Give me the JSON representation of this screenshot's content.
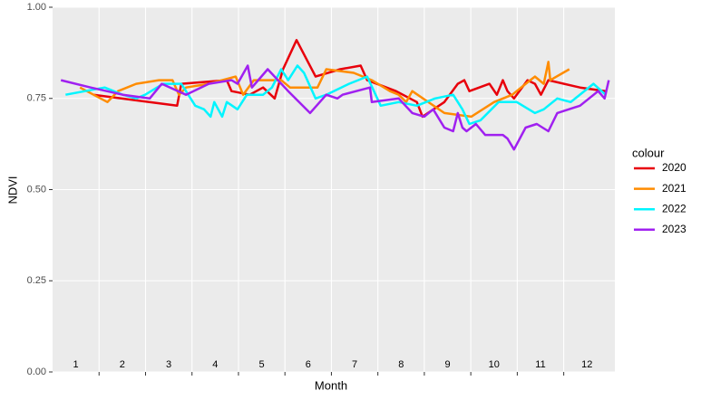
{
  "chart_data": {
    "type": "line",
    "x_label": "Month",
    "y_label": "NDVI",
    "legend_title": "colour",
    "legend": "right",
    "grid": true,
    "xlim": [
      0.5,
      12.6
    ],
    "ylim": [
      0,
      1
    ],
    "xticks": [
      1.5,
      2.5,
      3.5,
      4.5,
      5.5,
      6.5,
      7.5,
      8.5,
      9.5,
      10.5,
      11.5
    ],
    "yticks": [
      {
        "value": 0,
        "label": "0.00"
      },
      {
        "value": 0.25,
        "label": "0.25"
      },
      {
        "value": 0.5,
        "label": "0.50"
      },
      {
        "value": 0.75,
        "label": "0.75"
      },
      {
        "value": 1,
        "label": "1.00"
      }
    ],
    "annotations": [
      {
        "x": 1,
        "y": 0.02,
        "text": "1"
      },
      {
        "x": 2,
        "y": 0.02,
        "text": "2"
      },
      {
        "x": 3,
        "y": 0.02,
        "text": "3"
      },
      {
        "x": 4,
        "y": 0.02,
        "text": "4"
      },
      {
        "x": 5,
        "y": 0.02,
        "text": "5"
      },
      {
        "x": 6,
        "y": 0.02,
        "text": "6"
      },
      {
        "x": 7,
        "y": 0.02,
        "text": "7"
      },
      {
        "x": 8,
        "y": 0.02,
        "text": "8"
      },
      {
        "x": 9,
        "y": 0.02,
        "text": "9"
      },
      {
        "x": 10,
        "y": 0.02,
        "text": "10"
      },
      {
        "x": 11,
        "y": 0.02,
        "text": "11"
      },
      {
        "x": 12,
        "y": 0.02,
        "text": "12"
      }
    ],
    "series": [
      {
        "name": "2020",
        "color": "#e8000b",
        "x": [
          1.38,
          3.18,
          3.27,
          4.25,
          4.35,
          4.74,
          5.03,
          5.28,
          5.46,
          5.75,
          6.16,
          6.69,
          7.13,
          7.27,
          7.89,
          8.34,
          8.46,
          8.93,
          9.22,
          9.36,
          9.47,
          9.9,
          10.06,
          10.19,
          10.29,
          10.43,
          10.72,
          10.88,
          11.01,
          11.17,
          11.85,
          12.4
        ],
        "values": [
          0.76,
          0.73,
          0.79,
          0.8,
          0.77,
          0.76,
          0.78,
          0.75,
          0.83,
          0.91,
          0.81,
          0.83,
          0.84,
          0.8,
          0.77,
          0.74,
          0.7,
          0.74,
          0.79,
          0.8,
          0.77,
          0.79,
          0.76,
          0.8,
          0.77,
          0.75,
          0.8,
          0.79,
          0.76,
          0.8,
          0.78,
          0.77
        ]
      },
      {
        "name": "2021",
        "color": "#ff8c00",
        "x": [
          1.09,
          1.68,
          1.91,
          2.3,
          2.79,
          3.08,
          3.22,
          3.37,
          3.86,
          4.44,
          4.6,
          4.83,
          5.42,
          5.61,
          6.2,
          6.39,
          6.98,
          7.37,
          7.76,
          7.95,
          8.11,
          8.24,
          8.93,
          9.51,
          10.0,
          10.39,
          10.78,
          10.88,
          11.07,
          11.17,
          11.21,
          11.62
        ],
        "values": [
          0.78,
          0.74,
          0.77,
          0.79,
          0.8,
          0.8,
          0.76,
          0.78,
          0.79,
          0.81,
          0.76,
          0.8,
          0.8,
          0.78,
          0.78,
          0.83,
          0.82,
          0.8,
          0.77,
          0.76,
          0.74,
          0.77,
          0.71,
          0.7,
          0.74,
          0.76,
          0.8,
          0.81,
          0.79,
          0.85,
          0.8,
          0.83
        ]
      },
      {
        "name": "2022",
        "color": "#00f5ff",
        "x": [
          0.78,
          1.62,
          2.01,
          2.3,
          2.49,
          2.88,
          3.27,
          3.57,
          3.76,
          3.9,
          3.98,
          4.15,
          4.25,
          4.48,
          4.68,
          5.03,
          5.22,
          5.42,
          5.57,
          5.77,
          5.91,
          6.16,
          6.39,
          6.88,
          7.27,
          7.56,
          7.95,
          8.34,
          8.73,
          9.12,
          9.32,
          9.47,
          9.71,
          10.1,
          10.49,
          10.88,
          11.07,
          11.36,
          11.65,
          12.14,
          12.4
        ],
        "values": [
          0.76,
          0.78,
          0.76,
          0.75,
          0.76,
          0.79,
          0.79,
          0.73,
          0.72,
          0.7,
          0.74,
          0.7,
          0.74,
          0.72,
          0.76,
          0.76,
          0.78,
          0.83,
          0.8,
          0.84,
          0.82,
          0.75,
          0.76,
          0.79,
          0.81,
          0.73,
          0.74,
          0.73,
          0.75,
          0.76,
          0.72,
          0.68,
          0.69,
          0.74,
          0.74,
          0.71,
          0.72,
          0.75,
          0.74,
          0.79,
          0.76
        ]
      },
      {
        "name": "2023",
        "color": "#a020f0",
        "x": [
          0.68,
          1.32,
          2.01,
          2.59,
          2.85,
          3.37,
          3.86,
          4.35,
          4.48,
          4.7,
          4.79,
          5.13,
          5.57,
          6.04,
          6.39,
          6.63,
          6.74,
          7.33,
          7.37,
          7.95,
          8.24,
          8.5,
          8.69,
          8.93,
          9.12,
          9.22,
          9.32,
          9.41,
          9.61,
          9.81,
          10.0,
          10.19,
          10.29,
          10.43,
          10.68,
          10.92,
          11.17,
          11.36,
          11.85,
          12.24,
          12.38,
          12.47
        ],
        "values": [
          0.8,
          0.78,
          0.76,
          0.75,
          0.79,
          0.76,
          0.79,
          0.8,
          0.79,
          0.84,
          0.78,
          0.83,
          0.77,
          0.71,
          0.76,
          0.75,
          0.76,
          0.78,
          0.74,
          0.75,
          0.71,
          0.7,
          0.72,
          0.67,
          0.66,
          0.71,
          0.67,
          0.66,
          0.68,
          0.65,
          0.65,
          0.65,
          0.64,
          0.61,
          0.67,
          0.68,
          0.66,
          0.71,
          0.73,
          0.77,
          0.75,
          0.8
        ]
      }
    ]
  }
}
